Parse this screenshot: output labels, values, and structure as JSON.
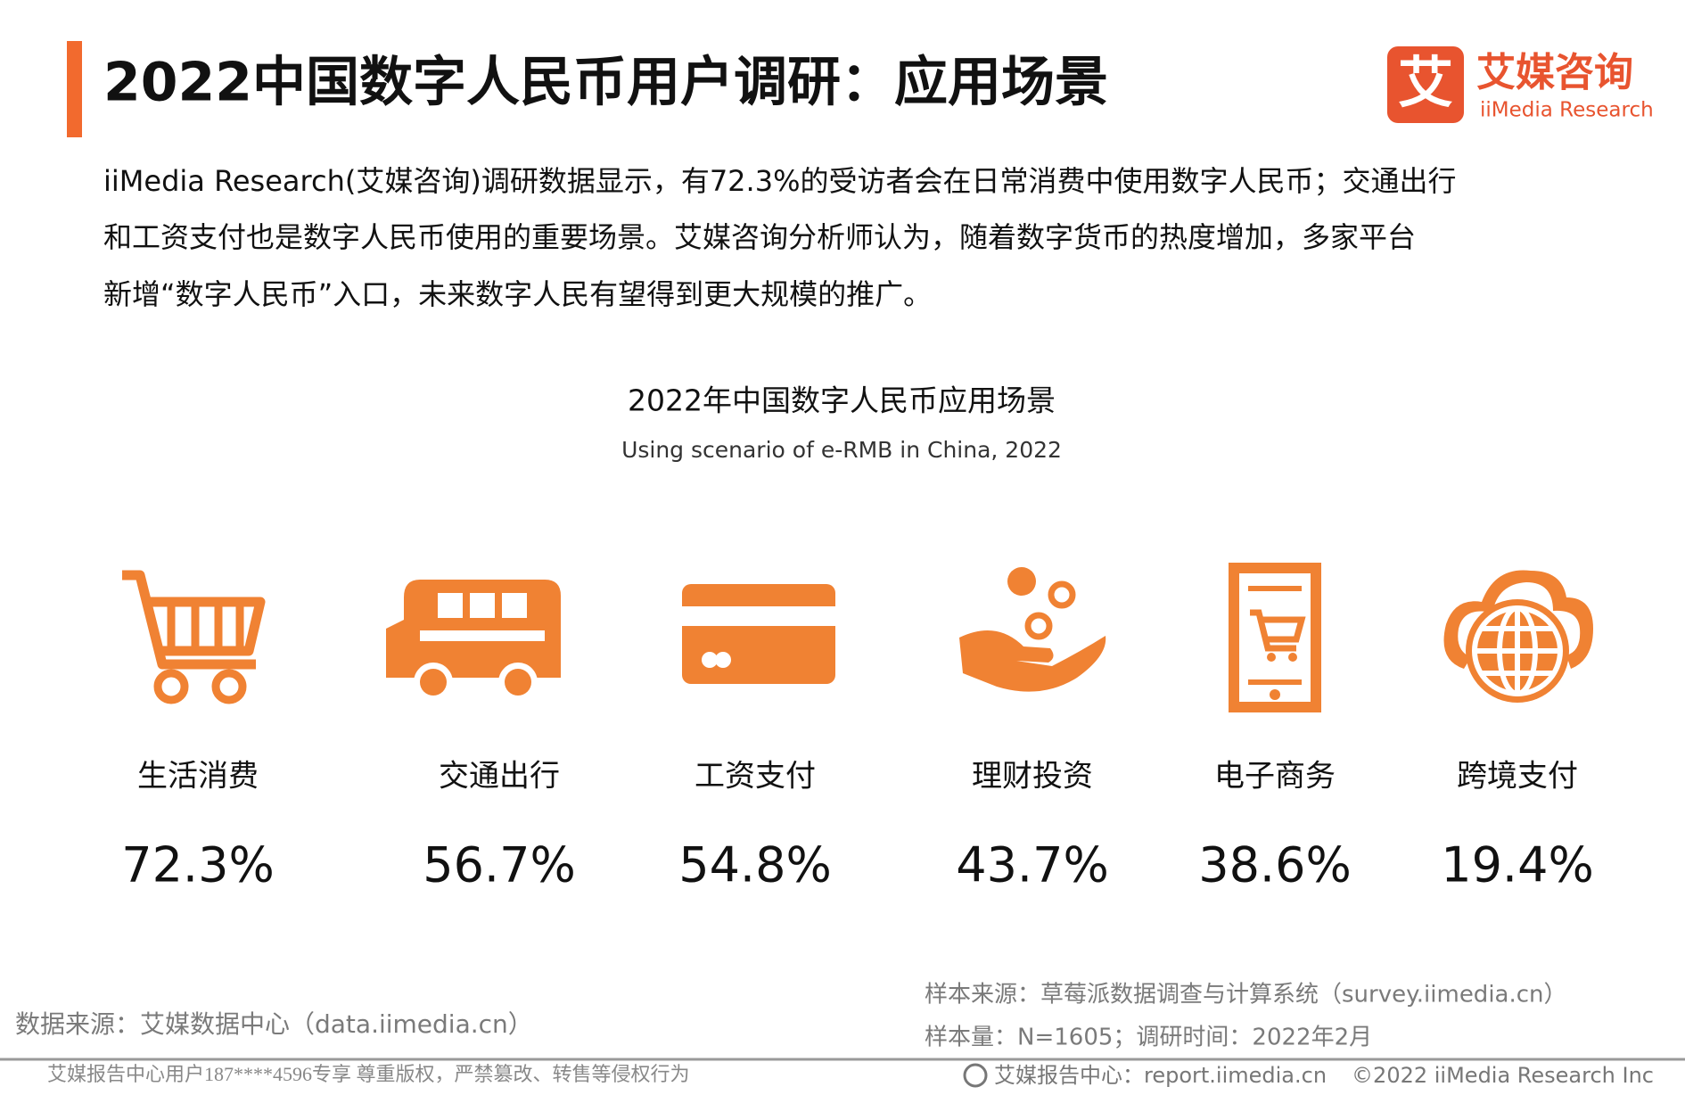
{
  "header": {
    "title": "2022中国数字人民币用户调研：应用场景",
    "logo": {
      "mark": "艾",
      "cn": "艾媒咨询",
      "en": "iiMedia Research"
    }
  },
  "intro": [
    "iiMedia Research(艾媒咨询)调研数据显示，有72.3%的受访者会在日常消费中使用数字人民币；交通出行",
    "和工资支付也是数字人民币使用的重要场景。艾媒咨询分析师认为，随着数字货币的热度增加，多家平台",
    "新增“数字人民币”入口，未来数字人民有望得到更大规模的推广。"
  ],
  "chart": {
    "title": "2022年中国数字人民币应用场景",
    "subtitle": "Using scenario of e-RMB in China, 2022",
    "items": [
      {
        "label": "生活消费",
        "value": "72.3%"
      },
      {
        "label": "交通出行",
        "value": "56.7%"
      },
      {
        "label": "工资支付",
        "value": "54.8%"
      },
      {
        "label": "理财投资",
        "value": "43.7%"
      },
      {
        "label": "电子商务",
        "value": "38.6%"
      },
      {
        "label": "跨境支付",
        "value": "19.4%"
      }
    ]
  },
  "notes": {
    "data_source": "数据来源：艾媒数据中心（data.iimedia.cn）",
    "sample_source": "样本来源：草莓派数据调查与计算系统（survey.iimedia.cn）",
    "sample_size": "样本量：N=1605；调研时间：2022年2月"
  },
  "footer": {
    "notice": "艾媒报告中心用户187****4596专享 尊重版权，严禁篡改、转售等侵权行为",
    "report_center": "艾媒报告中心：report.iimedia.cn",
    "copyright": "©2022 iiMedia Research Inc"
  }
}
